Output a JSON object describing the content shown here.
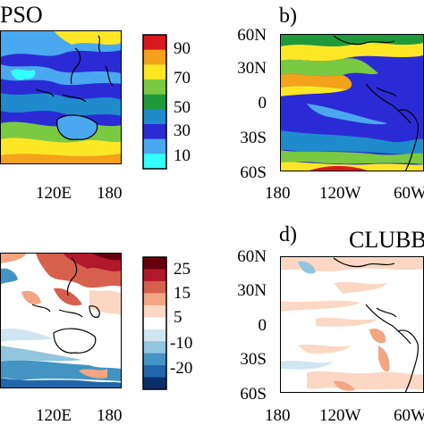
{
  "panels": [
    {
      "id": "a",
      "title": "PSO",
      "x_ticks": [
        "120E",
        "180"
      ],
      "colorbar": {
        "labels": [
          "90",
          "70",
          "50",
          "30",
          "10"
        ],
        "colors": [
          "#d7191c",
          "#f4a11b",
          "#fde725",
          "#7ac943",
          "#1e9a3a",
          "#1f8bcc",
          "#2b2bd6",
          "#4aa8f0",
          "#33ffff"
        ]
      }
    },
    {
      "id": "b",
      "label": "b)",
      "y_ticks": [
        "60N",
        "30N",
        "0",
        "30S",
        "60S"
      ],
      "x_ticks": [
        "180",
        "120W",
        "60W"
      ]
    },
    {
      "id": "c",
      "title": "",
      "x_ticks": [
        "120E",
        "180"
      ],
      "colorbar": {
        "labels": [
          "25",
          "15",
          "5",
          "-10",
          "-20"
        ],
        "colors": [
          "#67000d",
          "#b2182b",
          "#d6604d",
          "#f4a582",
          "#fbd7c4",
          "#ffffff",
          "#d1e5f0",
          "#92c5de",
          "#4393c3",
          "#2166ac",
          "#0b2f6b"
        ]
      }
    },
    {
      "id": "d",
      "label": "d)",
      "title": "CLUBB",
      "y_ticks": [
        "60N",
        "30N",
        "0",
        "30S",
        "60S"
      ],
      "x_ticks": [
        "180",
        "120W",
        "60W"
      ]
    }
  ],
  "colors": {
    "map_blue": "#2b2bd6",
    "map_green": "#1e9a3a",
    "map_yellow": "#fde725",
    "anom_red": "#d6604d",
    "anom_blue": "#4393c3"
  }
}
